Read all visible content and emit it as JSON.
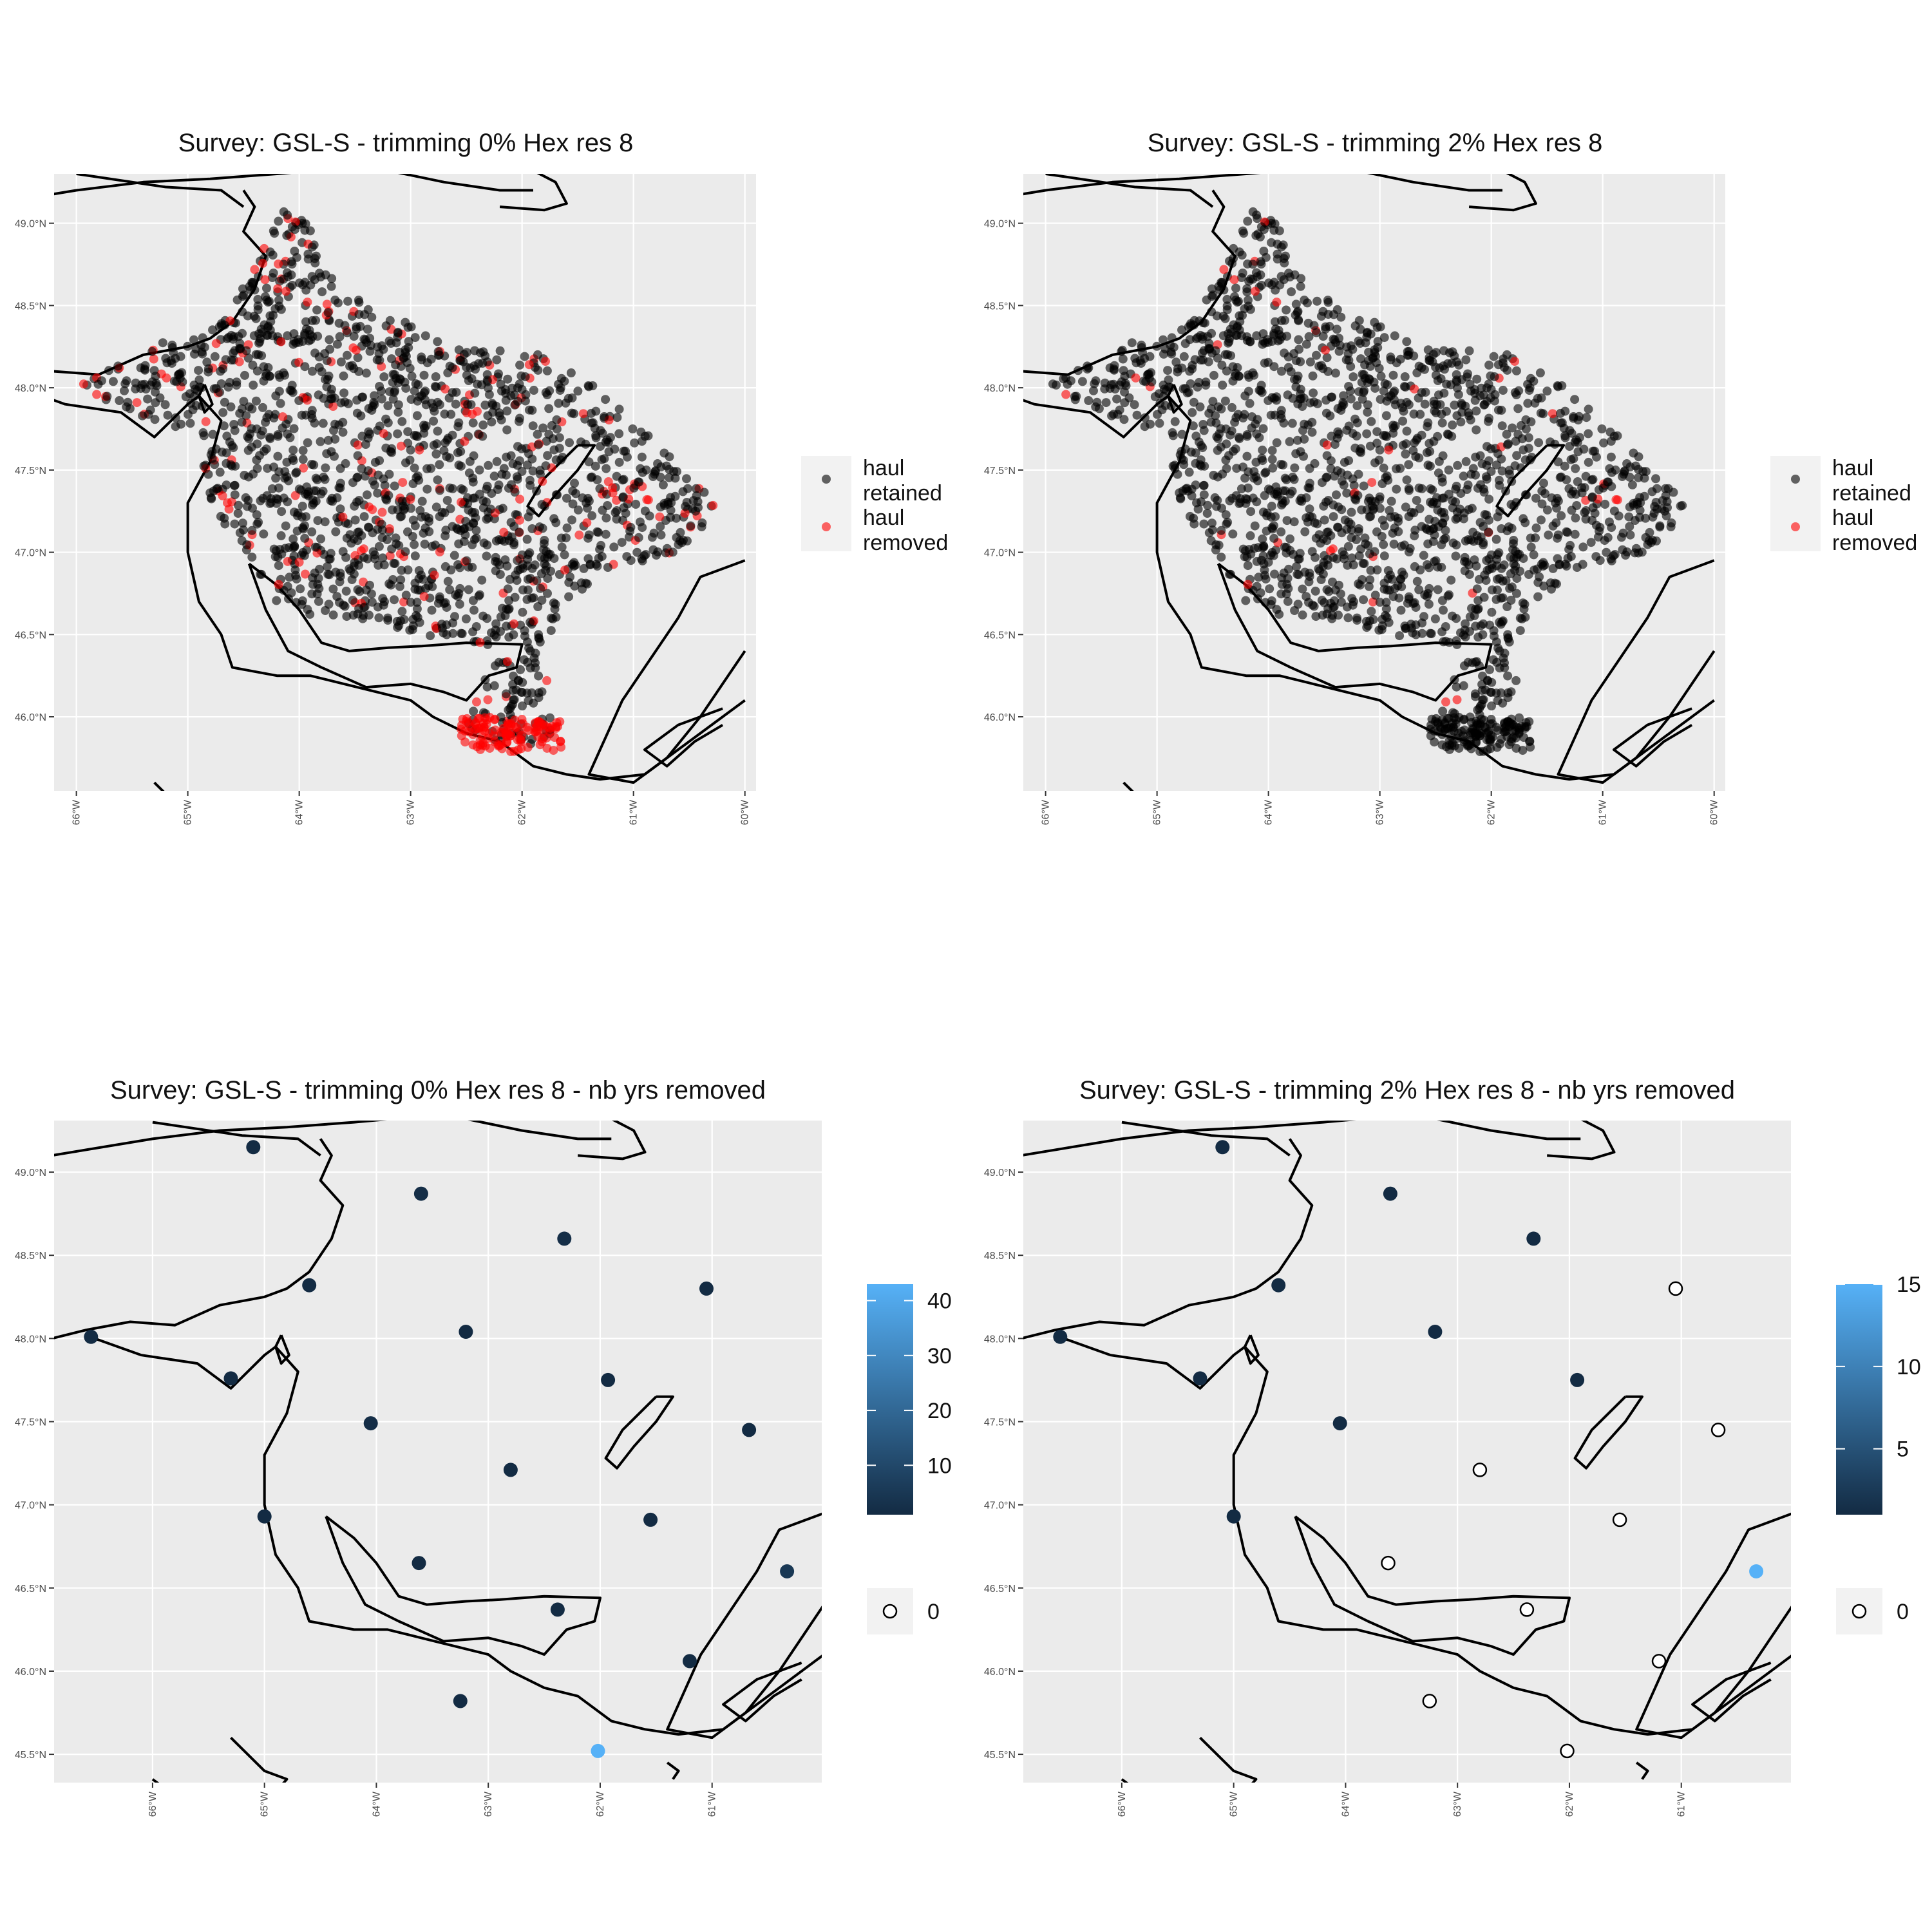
{
  "figure": {
    "colors": {
      "panel_bg": "#ebebeb",
      "grid": "#ffffff",
      "coast": "#000000",
      "haul_retained": "#000000",
      "haul_removed": "#ff0000",
      "scale_low": "#132b43",
      "scale_high": "#56b1f7"
    }
  },
  "panels": [
    {
      "id": "p1",
      "title": "Survey: GSL-S - trimming 0% Hex res 8",
      "lat_ticks": [
        "49.0°N",
        "48.5°N",
        "48.0°N",
        "47.5°N",
        "47.0°N",
        "46.5°N",
        "46.0°N"
      ],
      "lon_ticks": [
        "66°W",
        "65°W",
        "64°W",
        "63°W",
        "62°W",
        "61°W",
        "60°W"
      ],
      "legend": {
        "items": [
          {
            "label_lines": [
              "haul",
              "retained"
            ],
            "color": "#000000"
          },
          {
            "label_lines": [
              "haul",
              "removed"
            ],
            "color": "#ff0000"
          }
        ]
      }
    },
    {
      "id": "p2",
      "title": "Survey: GSL-S - trimming 2% Hex res 8",
      "lat_ticks": [
        "49.0°N",
        "48.5°N",
        "48.0°N",
        "47.5°N",
        "47.0°N",
        "46.5°N",
        "46.0°N"
      ],
      "lon_ticks": [
        "66°W",
        "65°W",
        "64°W",
        "63°W",
        "62°W",
        "61°W",
        "60°W"
      ],
      "legend": {
        "items": [
          {
            "label_lines": [
              "haul",
              "retained"
            ],
            "color": "#000000"
          },
          {
            "label_lines": [
              "haul",
              "removed"
            ],
            "color": "#ff0000"
          }
        ]
      }
    },
    {
      "id": "p3",
      "title": "Survey: GSL-S - trimming 0% Hex res 8 - nb yrs removed",
      "lat_ticks": [
        "49.0°N",
        "48.5°N",
        "48.0°N",
        "47.5°N",
        "47.0°N",
        "46.5°N",
        "46.0°N",
        "45.5°N"
      ],
      "lon_ticks": [
        "66°W",
        "65°W",
        "64°W",
        "63°W",
        "62°W",
        "61°W"
      ],
      "colorbar": {
        "ticks": [
          "40",
          "30",
          "20",
          "10"
        ]
      },
      "zero_label": "0"
    },
    {
      "id": "p4",
      "title": "Survey: GSL-S - trimming 2% Hex res 8 - nb yrs removed",
      "lat_ticks": [
        "49.0°N",
        "48.5°N",
        "48.0°N",
        "47.5°N",
        "47.0°N",
        "46.5°N",
        "46.0°N",
        "45.5°N"
      ],
      "lon_ticks": [
        "66°W",
        "65°W",
        "64°W",
        "63°W",
        "62°W",
        "61°W"
      ],
      "colorbar": {
        "ticks": [
          "15",
          "10",
          "5"
        ]
      },
      "zero_label": "0"
    }
  ],
  "map_data": {
    "p3_hex_centers": [
      {
        "lon": -65.1,
        "lat": 49.15,
        "n": 1
      },
      {
        "lon": -63.6,
        "lat": 48.87,
        "n": 2
      },
      {
        "lon": -62.32,
        "lat": 48.6,
        "n": 2
      },
      {
        "lon": -64.6,
        "lat": 48.32,
        "n": 1
      },
      {
        "lon": -61.05,
        "lat": 48.3,
        "n": 1
      },
      {
        "lon": -66.55,
        "lat": 48.01,
        "n": 1
      },
      {
        "lon": -63.2,
        "lat": 48.04,
        "n": 1
      },
      {
        "lon": -65.3,
        "lat": 47.76,
        "n": 1
      },
      {
        "lon": -61.93,
        "lat": 47.75,
        "n": 1
      },
      {
        "lon": -64.05,
        "lat": 47.49,
        "n": 2
      },
      {
        "lon": -60.67,
        "lat": 47.45,
        "n": 1
      },
      {
        "lon": -62.8,
        "lat": 47.21,
        "n": 1
      },
      {
        "lon": -65.0,
        "lat": 46.93,
        "n": 1
      },
      {
        "lon": -61.55,
        "lat": 46.91,
        "n": 1
      },
      {
        "lon": -63.62,
        "lat": 46.65,
        "n": 1
      },
      {
        "lon": -60.33,
        "lat": 46.6,
        "n": 5
      },
      {
        "lon": -62.38,
        "lat": 46.37,
        "n": 1
      },
      {
        "lon": -61.2,
        "lat": 46.06,
        "n": 1
      },
      {
        "lon": -63.25,
        "lat": 45.82,
        "n": 1
      },
      {
        "lon": -62.02,
        "lat": 45.52,
        "n": 43
      }
    ],
    "p4_hex_centers": [
      {
        "lon": -65.1,
        "lat": 49.15,
        "n": 1
      },
      {
        "lon": -63.6,
        "lat": 48.87,
        "n": 1
      },
      {
        "lon": -62.32,
        "lat": 48.6,
        "n": 1
      },
      {
        "lon": -64.6,
        "lat": 48.32,
        "n": 1
      },
      {
        "lon": -61.05,
        "lat": 48.3,
        "n": 0
      },
      {
        "lon": -66.55,
        "lat": 48.01,
        "n": 1
      },
      {
        "lon": -63.2,
        "lat": 48.04,
        "n": 1
      },
      {
        "lon": -65.3,
        "lat": 47.76,
        "n": 1
      },
      {
        "lon": -61.93,
        "lat": 47.75,
        "n": 1
      },
      {
        "lon": -64.05,
        "lat": 47.49,
        "n": 1
      },
      {
        "lon": -60.67,
        "lat": 47.45,
        "n": 0
      },
      {
        "lon": -62.8,
        "lat": 47.21,
        "n": 0
      },
      {
        "lon": -65.0,
        "lat": 46.93,
        "n": 1
      },
      {
        "lon": -61.55,
        "lat": 46.91,
        "n": 0
      },
      {
        "lon": -63.62,
        "lat": 46.65,
        "n": 0
      },
      {
        "lon": -60.33,
        "lat": 46.6,
        "n": 15
      },
      {
        "lon": -62.38,
        "lat": 46.37,
        "n": 0
      },
      {
        "lon": -61.2,
        "lat": 46.06,
        "n": 0
      },
      {
        "lon": -63.25,
        "lat": 45.82,
        "n": 0
      },
      {
        "lon": -62.02,
        "lat": 45.52,
        "n": 0
      }
    ],
    "p3_scale": [
      1,
      43
    ],
    "p4_scale": [
      1,
      15
    ]
  }
}
